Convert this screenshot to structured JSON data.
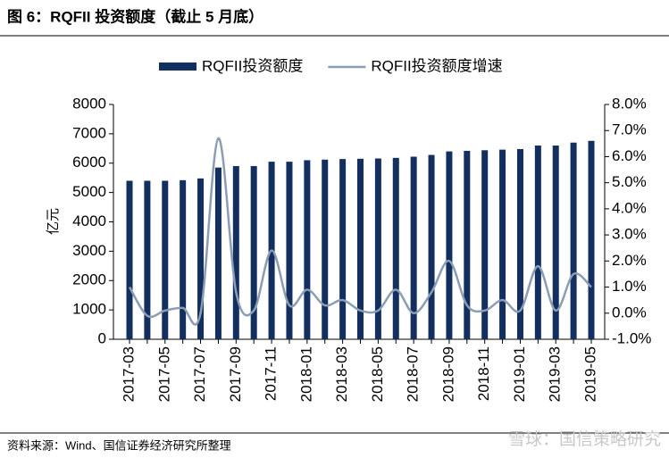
{
  "chart_data": {
    "type": "bar+line",
    "title": "图 6：RQFII 投资额度（截止 5 月底）",
    "y_label": "亿元",
    "source": "资料来源：Wind、国信证券经济研究所整理",
    "watermark": "雪球：国信策略研究",
    "categories": [
      "2017-03",
      null,
      "2017-05",
      null,
      "2017-07",
      null,
      "2017-09",
      null,
      "2017-11",
      null,
      "2018-01",
      null,
      "2018-03",
      null,
      "2018-05",
      null,
      "2018-07",
      null,
      "2018-09",
      null,
      "2018-11",
      null,
      "2019-01",
      null,
      "2019-03",
      null,
      "2019-05"
    ],
    "series": [
      {
        "name": "RQFII投资额度",
        "type": "bar",
        "color": "#132f5f",
        "values": [
          5400,
          5400,
          5400,
          5420,
          5480,
          5850,
          5900,
          5900,
          6050,
          6050,
          6100,
          6120,
          6140,
          6150,
          6160,
          6180,
          6220,
          6280,
          6400,
          6420,
          6440,
          6460,
          6480,
          6600,
          6600,
          6700,
          6760
        ]
      },
      {
        "name": "RQFII投资额度增速",
        "type": "line",
        "axis": "y2",
        "color": "#8b9db3",
        "values": [
          1.0,
          -0.1,
          0.1,
          0.2,
          0.0,
          6.7,
          0.8,
          0.1,
          2.4,
          0.3,
          0.9,
          0.3,
          0.5,
          0.1,
          0.1,
          0.9,
          0.0,
          0.8,
          2.0,
          0.3,
          0.1,
          0.5,
          0.1,
          1.8,
          0.1,
          1.5,
          1.0
        ]
      }
    ],
    "ylim": [
      0,
      8000
    ],
    "yticks": [
      0,
      1000,
      2000,
      3000,
      4000,
      5000,
      6000,
      7000,
      8000
    ],
    "y2lim": [
      -1.0,
      8.0
    ],
    "y2ticks": [
      {
        "value": -1.0,
        "label": "-1.0%"
      },
      {
        "value": 0.0,
        "label": "0.0%"
      },
      {
        "value": 1.0,
        "label": "1.0%"
      },
      {
        "value": 2.0,
        "label": "2.0%"
      },
      {
        "value": 3.0,
        "label": "3.0%"
      },
      {
        "value": 4.0,
        "label": "4.0%"
      },
      {
        "value": 5.0,
        "label": "5.0%"
      },
      {
        "value": 6.0,
        "label": "6.0%"
      },
      {
        "value": 7.0,
        "label": "7.0%"
      },
      {
        "value": 8.0,
        "label": "8.0%"
      }
    ],
    "legend": "top"
  }
}
